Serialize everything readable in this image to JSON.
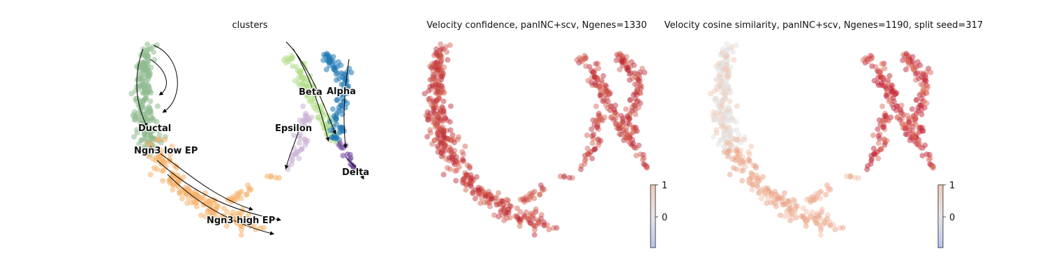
{
  "chart_data": [
    {
      "type": "scatter",
      "title": "clusters",
      "clusters": [
        {
          "name": "Ductal",
          "color": "#8fbc8f"
        },
        {
          "name": "Ngn3 low EP",
          "color": "#8fbc8f"
        },
        {
          "name": "Ngn3 high EP",
          "color": "#f6b26b"
        },
        {
          "name": "Beta",
          "color": "#b2df8a"
        },
        {
          "name": "Alpha",
          "color": "#1f78b4"
        },
        {
          "name": "Epsilon",
          "color": "#cab2d6"
        },
        {
          "name": "Delta",
          "color": "#6a3d9a"
        }
      ],
      "overlay": "velocity streamlines"
    },
    {
      "type": "scatter",
      "title": "Velocity confidence, panINC+scv, Ngenes=1330",
      "colorbar": {
        "ticks": [
          "1",
          "0"
        ],
        "colormap": "coolwarm"
      },
      "dominant_color": "#c8463c"
    },
    {
      "type": "scatter",
      "title": "Velocity cosine similarity, panINC+scv, Ngenes=1190, split seed=317",
      "colorbar": {
        "ticks": [
          "1",
          "0"
        ],
        "colormap": "coolwarm"
      },
      "dominant_color": "#c0303a"
    }
  ]
}
